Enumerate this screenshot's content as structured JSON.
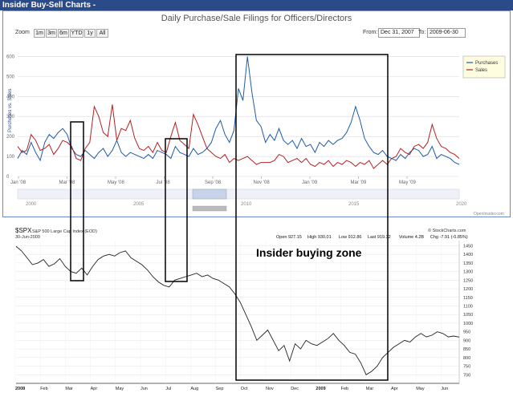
{
  "header": {
    "title": "Insider Buy-Sell Charts -"
  },
  "top_chart": {
    "title": "Daily Purchase/Sale Filings for Officers/Directors",
    "zoom_label": "Zoom",
    "zoom_buttons": [
      "1m",
      "3m",
      "6m",
      "YTD",
      "1y",
      "All"
    ],
    "from_label": "From:",
    "from_value": "Dec 31, 2007",
    "to_label": "To:",
    "to_value": "2009-06-30",
    "credit": "OpenInsider.com",
    "navigator_years": [
      "2000",
      "2005",
      "2010",
      "2015",
      "2020"
    ],
    "colors": {
      "purchases": "#1f5ba8",
      "sales": "#b22222",
      "grid": "#d8d8d8"
    }
  },
  "bottom_chart": {
    "symbol": "$SPX",
    "name": "S&P 500 Large Cap Index (EOD)",
    "date": "30-Jun-2009",
    "credit": "© StockCharts.com",
    "ohlc": [
      {
        "label": "Open",
        "value": "927.15"
      },
      {
        "label": "High",
        "value": "930.01"
      },
      {
        "label": "Low",
        "value": "912.86"
      },
      {
        "label": "Last",
        "value": "919.32"
      },
      {
        "label": "Volume",
        "value": "4.2B"
      },
      {
        "label": "Chg",
        "value": "-7.91 (-0.85%)"
      }
    ],
    "annotation": "Insider buying zone"
  },
  "chart_data": [
    {
      "type": "line",
      "title": "Daily Purchase/Sale Filings for Officers/Directors",
      "ylabel": "Purchases vs. Sales",
      "ylim": [
        0,
        650
      ],
      "y_ticks": [
        0,
        100,
        200,
        300,
        400,
        500,
        600
      ],
      "x_ticks": [
        "Jan '08",
        "Mar '08",
        "May '08",
        "Jul '08",
        "Sep '08",
        "Nov '08",
        "Jan '09",
        "Mar '09",
        "May '09"
      ],
      "legend_position": "top-right",
      "series": [
        {
          "name": "Purchases",
          "color": "#1f5ba8",
          "values": [
            90,
            130,
            110,
            170,
            120,
            80,
            170,
            210,
            190,
            220,
            240,
            210,
            140,
            110,
            100,
            130,
            110,
            90,
            120,
            140,
            100,
            130,
            180,
            120,
            100,
            120,
            110,
            100,
            90,
            110,
            90,
            130,
            120,
            110,
            90,
            150,
            120,
            110,
            100,
            140,
            110,
            120,
            140,
            170,
            240,
            280,
            210,
            170,
            230,
            440,
            380,
            600,
            420,
            280,
            250,
            170,
            210,
            180,
            240,
            180,
            160,
            180,
            140,
            190,
            150,
            160,
            120,
            170,
            150,
            180,
            160,
            180,
            190,
            220,
            270,
            350,
            280,
            190,
            150,
            120,
            110,
            130,
            100,
            90,
            80,
            110,
            90,
            120,
            140,
            130,
            100,
            110,
            150,
            90,
            110,
            100,
            90,
            70,
            60
          ]
        },
        {
          "name": "Sales",
          "color": "#b22222",
          "values": [
            150,
            120,
            130,
            210,
            180,
            130,
            140,
            160,
            110,
            140,
            180,
            170,
            150,
            90,
            80,
            140,
            170,
            350,
            300,
            220,
            200,
            360,
            180,
            240,
            230,
            280,
            190,
            140,
            130,
            150,
            120,
            170,
            130,
            120,
            200,
            270,
            180,
            160,
            140,
            310,
            260,
            200,
            140,
            120,
            100,
            90,
            110,
            70,
            90,
            80,
            90,
            100,
            80,
            60,
            70,
            70,
            70,
            80,
            110,
            100,
            70,
            80,
            90,
            70,
            90,
            60,
            50,
            70,
            60,
            80,
            50,
            70,
            60,
            80,
            70,
            50,
            70,
            60,
            80,
            40,
            60,
            80,
            60,
            90,
            100,
            140,
            120,
            110,
            150,
            160,
            140,
            170,
            260,
            190,
            150,
            140,
            120,
            110,
            90
          ]
        }
      ]
    },
    {
      "type": "line",
      "title": "S&P 500 Large Cap Index (EOD)",
      "ylim": [
        650,
        1480
      ],
      "y_ticks": [
        700,
        750,
        800,
        850,
        900,
        950,
        1000,
        1050,
        1100,
        1150,
        1200,
        1250,
        1300,
        1350,
        1400,
        1450
      ],
      "x_ticks": [
        "2008",
        "Feb",
        "Mar",
        "Apr",
        "May",
        "Jun",
        "Jul",
        "Aug",
        "Sep",
        "Oct",
        "Nov",
        "Dec",
        "2009",
        "Feb",
        "Mar",
        "Apr",
        "May",
        "Jun"
      ],
      "series": [
        {
          "name": "$SPX",
          "color": "#222222",
          "values": [
            1447,
            1420,
            1380,
            1340,
            1350,
            1370,
            1330,
            1345,
            1375,
            1330,
            1300,
            1290,
            1320,
            1280,
            1330,
            1370,
            1390,
            1400,
            1390,
            1410,
            1420,
            1380,
            1360,
            1340,
            1310,
            1270,
            1240,
            1220,
            1210,
            1250,
            1260,
            1270,
            1280,
            1290,
            1270,
            1280,
            1260,
            1250,
            1230,
            1210,
            1170,
            1120,
            1050,
            980,
            900,
            930,
            960,
            900,
            840,
            870,
            780,
            880,
            850,
            900,
            880,
            870,
            890,
            910,
            940,
            900,
            870,
            830,
            820,
            770,
            700,
            720,
            750,
            800,
            830,
            860,
            880,
            900,
            890,
            920,
            940,
            920,
            930,
            950,
            940,
            920,
            925,
            919
          ]
        }
      ]
    }
  ]
}
